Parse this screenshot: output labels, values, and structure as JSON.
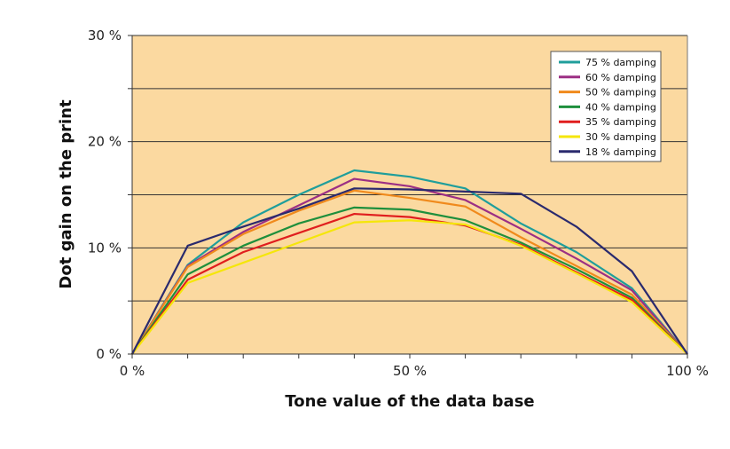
{
  "chart_data": {
    "type": "line",
    "xlabel": "Tone value of the data base",
    "ylabel": "Dot gain on the print",
    "x": [
      0,
      10,
      20,
      30,
      40,
      50,
      60,
      70,
      80,
      90,
      100
    ],
    "x_unit": "%",
    "xlim": [
      0,
      100
    ],
    "ylim": [
      0,
      30
    ],
    "x_tick_labels": [
      "0 %",
      "50 %",
      "100 %"
    ],
    "y_tick_labels": [
      "0 %",
      "10 %",
      "20 %",
      "30 %"
    ],
    "grid": "horizontal every 5 %",
    "legend_position": "top-right",
    "plot_background": "#fbd9a0",
    "series": [
      {
        "name": "75 % damping",
        "color": "#1f9e9b",
        "values": [
          0,
          8.4,
          12.4,
          15.0,
          17.3,
          16.7,
          15.6,
          12.3,
          9.6,
          6.2,
          0
        ]
      },
      {
        "name": "60 % damping",
        "color": "#9c2f84",
        "values": [
          0,
          8.3,
          11.5,
          14.0,
          16.5,
          15.8,
          14.5,
          11.8,
          9.0,
          6.0,
          0
        ]
      },
      {
        "name": "50 % damping",
        "color": "#f08a1c",
        "values": [
          0,
          8.2,
          11.3,
          13.5,
          15.4,
          14.7,
          13.9,
          11.0,
          8.3,
          5.6,
          0
        ]
      },
      {
        "name": "40 % damping",
        "color": "#1e8f3c",
        "values": [
          0,
          7.5,
          10.2,
          12.3,
          13.8,
          13.6,
          12.6,
          10.5,
          8.0,
          5.3,
          0
        ]
      },
      {
        "name": "35 % damping",
        "color": "#e01e1e",
        "values": [
          0,
          7.0,
          9.6,
          11.4,
          13.2,
          12.9,
          12.1,
          10.3,
          7.7,
          5.1,
          0
        ]
      },
      {
        "name": "30 % damping",
        "color": "#f5e60a",
        "values": [
          0,
          6.7,
          8.6,
          10.5,
          12.4,
          12.6,
          12.2,
          10.2,
          7.6,
          4.9,
          0
        ]
      },
      {
        "name": "18 % damping",
        "color": "#2a2a6e",
        "values": [
          0,
          10.2,
          12.0,
          13.7,
          15.6,
          15.5,
          15.3,
          15.1,
          12.0,
          7.8,
          0
        ]
      }
    ]
  }
}
